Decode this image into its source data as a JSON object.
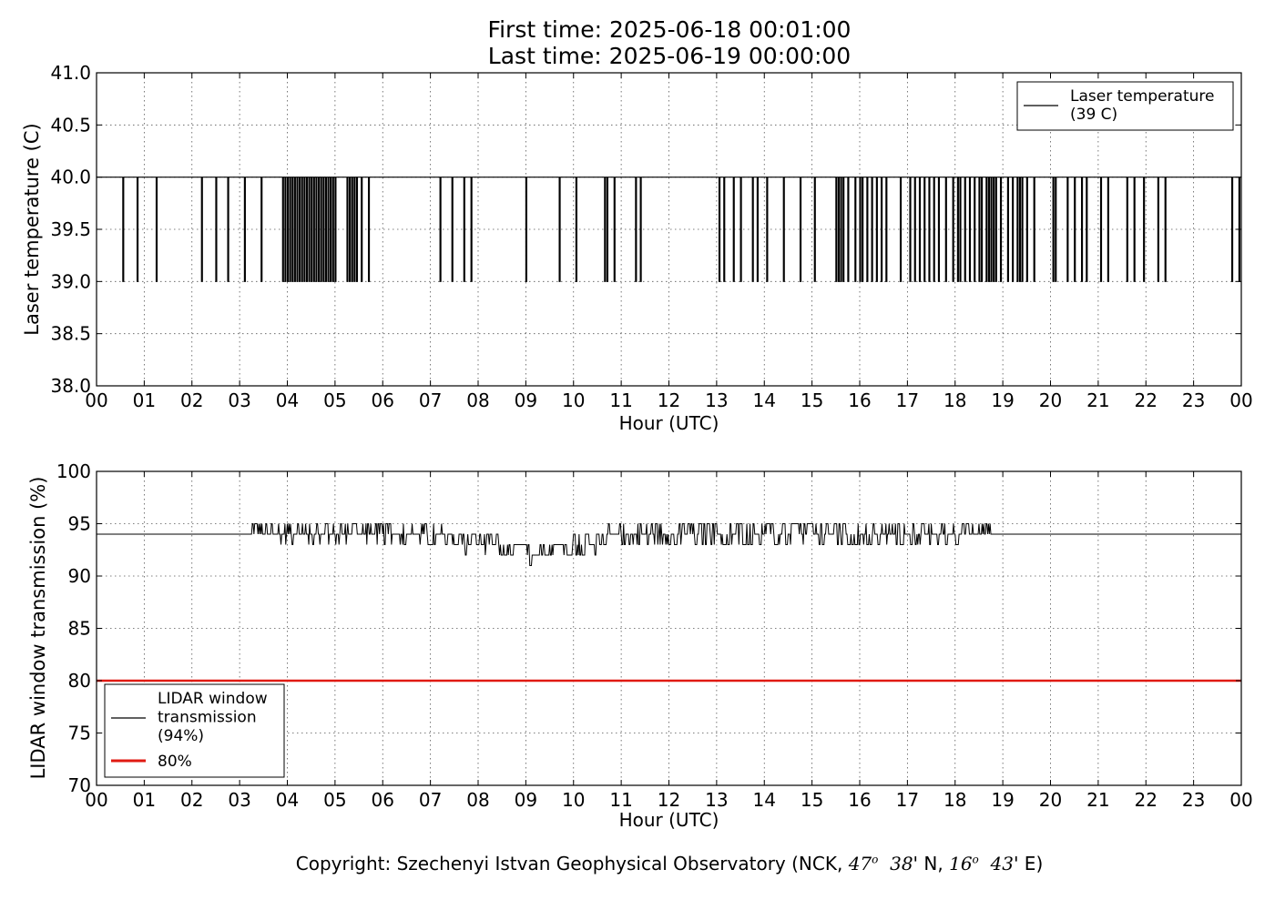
{
  "header": {
    "first_time": "First time: 2025-06-18 00:01:00",
    "last_time": "Last time: 2025-06-19 00:00:00"
  },
  "footer": {
    "prefix": "Copyright: Szechenyi Istvan Geophysical Observatory (NCK, ",
    "lat_deg": "47",
    "lat_min": "38",
    "lat_dir": "' N,",
    "lon_deg": "16",
    "lon_min": "43",
    "lon_dir": "' E)",
    "degree_symbol": "o"
  },
  "chart_data": [
    {
      "type": "line",
      "ylabel": "Laser temperature (C)",
      "xlabel": "Hour (UTC)",
      "xlim": [
        0,
        24
      ],
      "ylim": [
        38.0,
        41.0
      ],
      "xticks": [
        "00",
        "01",
        "02",
        "03",
        "04",
        "05",
        "06",
        "07",
        "08",
        "09",
        "10",
        "11",
        "12",
        "13",
        "14",
        "15",
        "16",
        "17",
        "18",
        "19",
        "20",
        "21",
        "22",
        "23",
        "00"
      ],
      "yticks": [
        "38.0",
        "38.5",
        "39.0",
        "39.5",
        "40.0",
        "40.5",
        "41.0"
      ],
      "grid": true,
      "legend": {
        "placement": "top-right",
        "entries": [
          {
            "label": "Laser temperature\n(39 C)",
            "color": "#000000"
          }
        ]
      },
      "baseline": 40.0,
      "dip_value": 39.0,
      "dips_hours": [
        0.55,
        0.85,
        1.25,
        2.2,
        2.5,
        2.75,
        3.1,
        3.45,
        3.9,
        3.95,
        4.0,
        4.05,
        4.1,
        4.15,
        4.2,
        4.25,
        4.3,
        4.35,
        4.4,
        4.45,
        4.5,
        4.55,
        4.6,
        4.65,
        4.7,
        4.75,
        4.8,
        4.85,
        4.9,
        4.95,
        5.0,
        5.25,
        5.3,
        5.35,
        5.4,
        5.45,
        5.55,
        5.7,
        7.2,
        7.45,
        7.7,
        7.85,
        9.0,
        9.7,
        10.05,
        10.65,
        10.7,
        10.85,
        11.3,
        11.4,
        13.05,
        13.15,
        13.35,
        13.5,
        13.75,
        13.85,
        14.05,
        14.4,
        14.75,
        15.05,
        15.5,
        15.55,
        15.6,
        15.65,
        15.75,
        15.9,
        16.0,
        16.05,
        16.15,
        16.25,
        16.35,
        16.45,
        16.55,
        16.85,
        17.05,
        17.15,
        17.25,
        17.35,
        17.45,
        17.55,
        17.65,
        17.8,
        17.95,
        18.05,
        18.1,
        18.2,
        18.3,
        18.4,
        18.5,
        18.55,
        18.65,
        18.7,
        18.75,
        18.8,
        18.85,
        18.95,
        19.1,
        19.2,
        19.3,
        19.35,
        19.4,
        19.5,
        19.65,
        20.05,
        20.1,
        20.35,
        20.5,
        20.65,
        20.75,
        21.05,
        21.2,
        21.6,
        21.75,
        21.95,
        22.25,
        22.4,
        23.8,
        23.95
      ]
    },
    {
      "type": "line",
      "ylabel": "LIDAR window transmission (%)",
      "xlabel": "Hour (UTC)",
      "xlim": [
        0,
        24
      ],
      "ylim": [
        70,
        100
      ],
      "xticks": [
        "00",
        "01",
        "02",
        "03",
        "04",
        "05",
        "06",
        "07",
        "08",
        "09",
        "10",
        "11",
        "12",
        "13",
        "14",
        "15",
        "16",
        "17",
        "18",
        "19",
        "20",
        "21",
        "22",
        "23",
        "00"
      ],
      "yticks": [
        "70",
        "75",
        "80",
        "85",
        "90",
        "95",
        "100"
      ],
      "grid": true,
      "legend": {
        "placement": "bottom-left",
        "entries": [
          {
            "label": "LIDAR window\ntransmission\n(94%)",
            "color": "#000000"
          },
          {
            "label": "80%",
            "color": "#e01a12"
          }
        ]
      },
      "baseline": 94,
      "threshold": 80,
      "noisy_range_hours": [
        3.25,
        18.75
      ],
      "noisy_profile": [
        {
          "x": 3.25,
          "center": 94.3,
          "spread": 0.9
        },
        {
          "x": 7.0,
          "center": 93.9,
          "spread": 1.0
        },
        {
          "x": 8.0,
          "center": 93.0,
          "spread": 1.0
        },
        {
          "x": 9.0,
          "center": 92.3,
          "spread": 1.0
        },
        {
          "x": 10.0,
          "center": 92.8,
          "spread": 1.1
        },
        {
          "x": 11.0,
          "center": 93.9,
          "spread": 1.2
        },
        {
          "x": 14.5,
          "center": 94.2,
          "spread": 1.3
        },
        {
          "x": 16.0,
          "center": 93.9,
          "spread": 1.1
        },
        {
          "x": 18.75,
          "center": 94.2,
          "spread": 0.8
        }
      ]
    }
  ]
}
